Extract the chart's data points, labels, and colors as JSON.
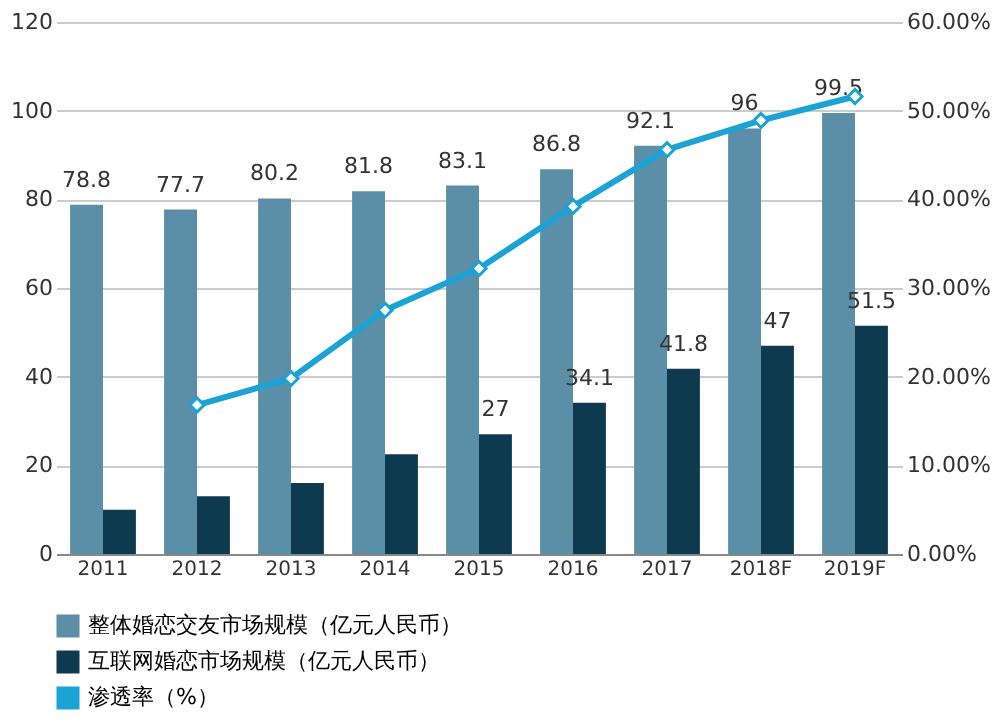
{
  "chart_data": {
    "type": "bar",
    "categories": [
      "2011",
      "2012",
      "2013",
      "2014",
      "2015",
      "2016",
      "2017",
      "2018F",
      "2019F"
    ],
    "series": [
      {
        "name": "整体婚恋交友市场规模（亿元人民币）",
        "color": "#5b8fa8",
        "values": [
          78.8,
          77.7,
          80.2,
          81.8,
          83.1,
          86.8,
          92.1,
          96,
          99.5
        ],
        "value_labels": [
          "78.8",
          "77.7",
          "80.2",
          "81.8",
          "83.1",
          "86.8",
          "92.1",
          "96",
          "99.5"
        ]
      },
      {
        "name": "互联网婚恋市场规模（亿元人民币）",
        "color": "#0d3a4f",
        "values": [
          10,
          13,
          16,
          22.5,
          27,
          34.1,
          41.8,
          47,
          51.5
        ],
        "value_labels": [
          null,
          null,
          null,
          null,
          "27",
          "34.1",
          "41.8",
          "47",
          "51.5"
        ]
      },
      {
        "name": "渗透率（%）",
        "type": "line",
        "axis": "y2",
        "color": "#1ba3d6",
        "values": [
          null,
          16.8,
          19.8,
          27.5,
          32.2,
          39.2,
          45.6,
          48.9,
          51.6
        ]
      }
    ],
    "ylim": [
      0,
      120
    ],
    "yticks": [
      0,
      20,
      40,
      60,
      80,
      100,
      120
    ],
    "y2lim": [
      0,
      60
    ],
    "y2ticks": [
      {
        "value": 0,
        "label": "0.00%"
      },
      {
        "value": 10,
        "label": "10.00%"
      },
      {
        "value": 20,
        "label": "20.00%"
      },
      {
        "value": 30,
        "label": "30.00%"
      },
      {
        "value": 40,
        "label": "40.00%"
      },
      {
        "value": 50,
        "label": "50.00%"
      },
      {
        "value": 60,
        "label": "60.00%"
      }
    ],
    "grid": "y",
    "legend": "bottom",
    "marker": "diamond"
  }
}
